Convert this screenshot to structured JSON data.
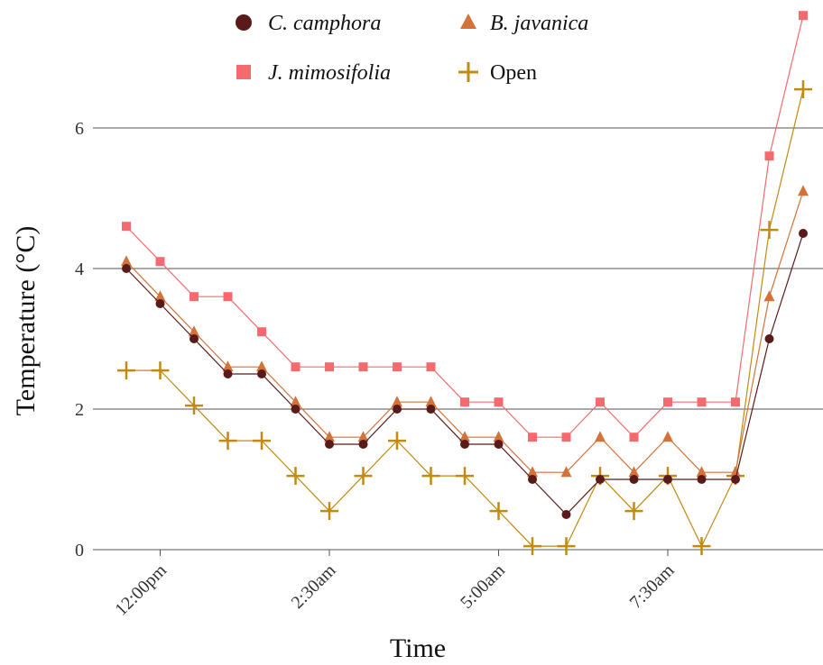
{
  "chart_data": {
    "type": "line",
    "title": "",
    "xlabel": "Time",
    "ylabel": "Temperature (°C)",
    "ylim": [
      0,
      6.4
    ],
    "yticks": [
      0,
      2,
      4,
      6
    ],
    "grid": "horizontal",
    "legend_position": "top",
    "x_tick_labels": [
      {
        "x": 1,
        "label": "12:00pm"
      },
      {
        "x": 6,
        "label": "2:30am"
      },
      {
        "x": 11,
        "label": "5:00am"
      },
      {
        "x": 16,
        "label": "7:30am"
      }
    ],
    "x": [
      0,
      1,
      2,
      3,
      4,
      5,
      6,
      7,
      8,
      9,
      10,
      11,
      12,
      13,
      14,
      15,
      16,
      17,
      18,
      19,
      20
    ],
    "series": [
      {
        "name": "C. camphora",
        "italic": true,
        "color": "#5a1a1a",
        "marker": "circle",
        "values": [
          4.0,
          3.5,
          3.0,
          2.5,
          2.5,
          2.0,
          1.5,
          1.5,
          2.0,
          2.0,
          1.5,
          1.5,
          1.0,
          0.5,
          1.0,
          1.0,
          1.0,
          1.0,
          1.0,
          3.0,
          4.5
        ]
      },
      {
        "name": "B. javanica",
        "italic": true,
        "color": "#d2733a",
        "marker": "triangle",
        "values": [
          4.1,
          3.6,
          3.1,
          2.6,
          2.6,
          2.1,
          1.6,
          1.6,
          2.1,
          2.1,
          1.6,
          1.6,
          1.1,
          1.1,
          1.6,
          1.1,
          1.6,
          1.1,
          1.1,
          3.6,
          5.1
        ]
      },
      {
        "name": "J. mimosifolia",
        "italic": true,
        "color": "#f56a6e",
        "marker": "square",
        "values": [
          4.6,
          4.1,
          3.6,
          3.6,
          3.1,
          2.6,
          2.6,
          2.6,
          2.6,
          2.6,
          2.1,
          2.1,
          1.6,
          1.6,
          2.1,
          1.6,
          2.1,
          2.1,
          2.1,
          5.6,
          7.6
        ]
      },
      {
        "name": "Open",
        "italic": false,
        "color": "#c28a10",
        "marker": "plus",
        "values": [
          2.55,
          2.55,
          2.05,
          1.55,
          1.55,
          1.05,
          0.55,
          1.05,
          1.55,
          1.05,
          1.05,
          0.55,
          0.05,
          0.05,
          1.05,
          0.55,
          1.05,
          0.05,
          1.05,
          4.55,
          6.55
        ]
      }
    ]
  }
}
